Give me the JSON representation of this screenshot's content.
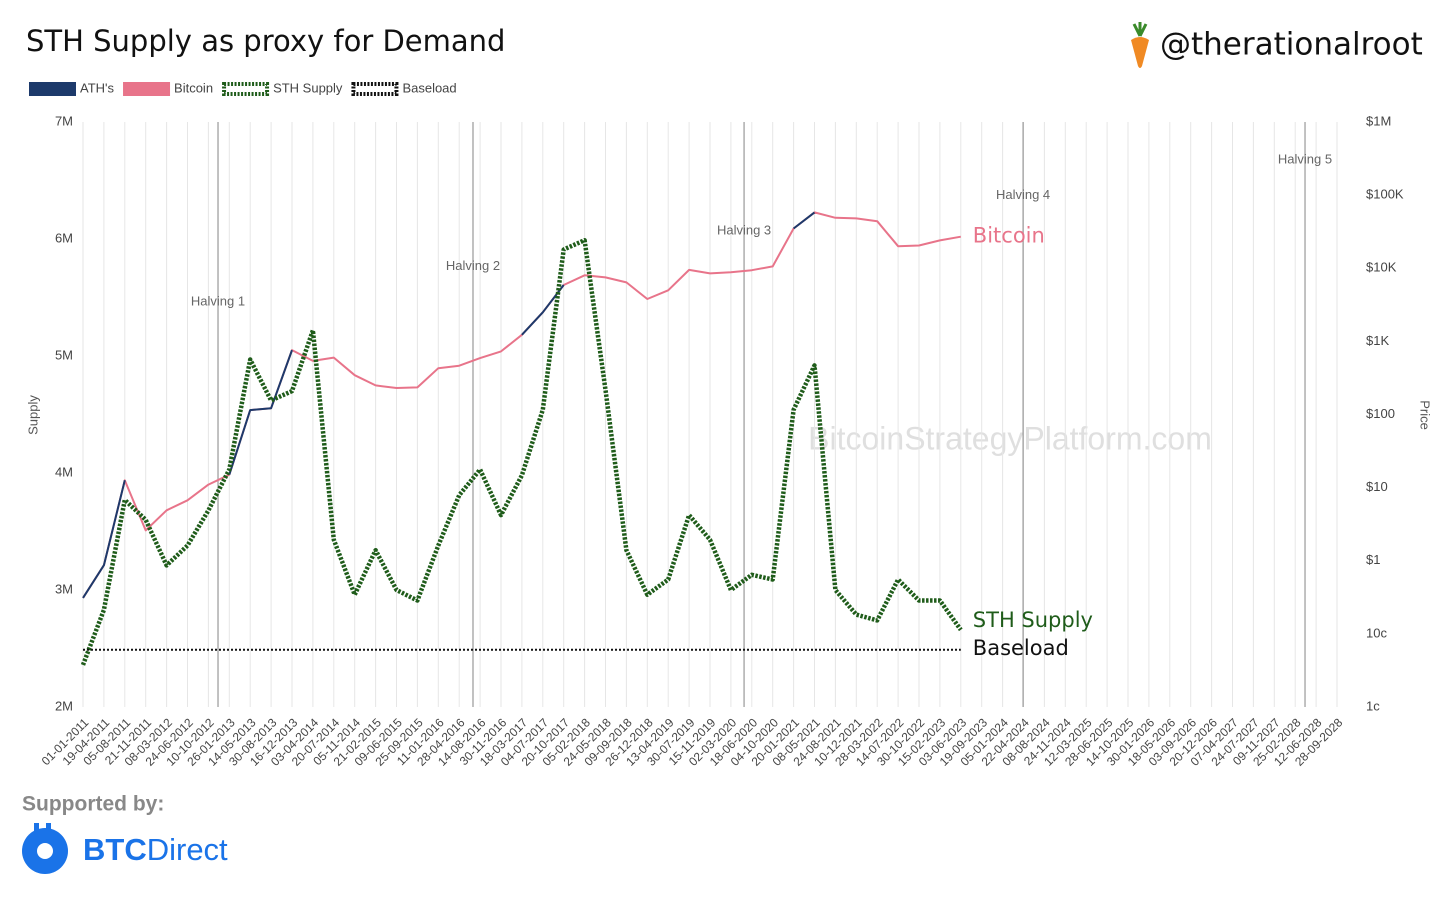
{
  "chart_data": {
    "type": "line",
    "title": "STH Supply as proxy for Demand",
    "handle": "@therationalroot",
    "sponsor_caption": "Supported by:",
    "sponsor_parts": [
      "BTC",
      "Direct"
    ],
    "watermark": "BitcoinStrategyPlatform.com",
    "ylabel": "Supply",
    "y2label": "Price",
    "grid": true,
    "y2log": true,
    "legend": "top-left",
    "categories": [
      "01-01-2011",
      "19-04-2011",
      "05-08-2011",
      "21-11-2011",
      "08-03-2012",
      "24-06-2012",
      "10-10-2012",
      "26-01-2013",
      "14-05-2013",
      "30-08-2013",
      "16-12-2013",
      "03-04-2014",
      "20-07-2014",
      "05-11-2014",
      "21-02-2015",
      "09-06-2015",
      "25-09-2015",
      "11-01-2016",
      "28-04-2016",
      "14-08-2016",
      "30-11-2016",
      "18-03-2017",
      "04-07-2017",
      "20-10-2017",
      "05-02-2018",
      "24-05-2018",
      "09-09-2018",
      "26-12-2018",
      "13-04-2019",
      "30-07-2019",
      "15-11-2019",
      "02-03-2020",
      "18-06-2020",
      "04-10-2020",
      "20-01-2021",
      "08-05-2021",
      "24-08-2021",
      "10-12-2021",
      "28-03-2022",
      "14-07-2022",
      "30-10-2022",
      "15-02-2023",
      "03-06-2023",
      "19-09-2023",
      "05-01-2024",
      "22-04-2024",
      "08-08-2024",
      "24-11-2024",
      "12-03-2025",
      "28-06-2025",
      "14-10-2025",
      "30-01-2026",
      "18-05-2026",
      "03-09-2026",
      "20-12-2026",
      "07-04-2027",
      "24-07-2027",
      "09-11-2027",
      "25-02-2028",
      "12-06-2028",
      "28-09-2028"
    ],
    "ylim": [
      2000000,
      7000000
    ],
    "yticks": [
      {
        "value": 2000000,
        "label": "2M"
      },
      {
        "value": 3000000,
        "label": "3M"
      },
      {
        "value": 4000000,
        "label": "4M"
      },
      {
        "value": 5000000,
        "label": "5M"
      },
      {
        "value": 6000000,
        "label": "6M"
      },
      {
        "value": 7000000,
        "label": "7M"
      }
    ],
    "y2lim": [
      0.01,
      1000000
    ],
    "y2ticks": [
      {
        "value": 0.01,
        "label": "1c"
      },
      {
        "value": 0.1,
        "label": "10c"
      },
      {
        "value": 1,
        "label": "$1"
      },
      {
        "value": 10,
        "label": "$10"
      },
      {
        "value": 100,
        "label": "$100"
      },
      {
        "value": 1000,
        "label": "$1K"
      },
      {
        "value": 10000,
        "label": "$10K"
      },
      {
        "value": 100000,
        "label": "$100K"
      },
      {
        "value": 1000000,
        "label": "$1M"
      }
    ],
    "halvings": [
      {
        "label": "Halving 1",
        "x": 6.46
      },
      {
        "label": "Halving 2",
        "x": 18.66
      },
      {
        "label": "Halving 3",
        "x": 31.63
      },
      {
        "label": "Halving 4",
        "x": 44.98
      },
      {
        "label": "Halving 5",
        "x": 58.47
      }
    ],
    "series": [
      {
        "name": "ATH's",
        "color": "#1d3a6b",
        "axis": "y2",
        "style": "solid",
        "values": [
          0.31,
          0.87,
          12.6,
          null,
          null,
          null,
          null,
          15,
          115,
          122,
          760,
          null,
          null,
          null,
          null,
          null,
          null,
          null,
          null,
          null,
          null,
          1230,
          2500,
          5900,
          null,
          null,
          null,
          null,
          null,
          null,
          null,
          null,
          null,
          null,
          35000,
          58000,
          null,
          null,
          null,
          null,
          null,
          null,
          null,
          null,
          null,
          null,
          null,
          null,
          null,
          null,
          null,
          null,
          null,
          null,
          null,
          null,
          null,
          null,
          null,
          null,
          null
        ]
      },
      {
        "name": "Bitcoin",
        "color": "#e8748a",
        "axis": "y2",
        "style": "solid",
        "end_label": "Bitcoin",
        "values": [
          0.31,
          0.87,
          12.6,
          2.6,
          4.9,
          6.7,
          11,
          15,
          115,
          122,
          760,
          540,
          600,
          345,
          250,
          230,
          235,
          430,
          465,
          590,
          730,
          1230,
          2500,
          5900,
          8000,
          7500,
          6400,
          3800,
          5000,
          9500,
          8500,
          8800,
          9400,
          10600,
          35000,
          58000,
          49000,
          48000,
          44000,
          20000,
          20500,
          24000,
          27000,
          null,
          null,
          null,
          null,
          null,
          null,
          null,
          null,
          null,
          null,
          null,
          null,
          null,
          null,
          null,
          null,
          null,
          null
        ]
      },
      {
        "name": "STH Supply",
        "color": "#1f5c1a",
        "axis": "y",
        "style": "dotted",
        "end_label": "STH Supply",
        "values": [
          2360000,
          2830000,
          3770000,
          3600000,
          3210000,
          3380000,
          3680000,
          4030000,
          4970000,
          4620000,
          4700000,
          5220000,
          3430000,
          2960000,
          3340000,
          3000000,
          2910000,
          3380000,
          3810000,
          4030000,
          3640000,
          3980000,
          4540000,
          5910000,
          5990000,
          4710000,
          3340000,
          2960000,
          3090000,
          3640000,
          3430000,
          3000000,
          3130000,
          3090000,
          4540000,
          4920000,
          3000000,
          2790000,
          2740000,
          3090000,
          2910000,
          2910000,
          2660000,
          null,
          null,
          null,
          null,
          null,
          null,
          null,
          null,
          null,
          null,
          null,
          null,
          null,
          null,
          null,
          null,
          null,
          null
        ]
      },
      {
        "name": "Baseload",
        "color": "#111111",
        "axis": "y",
        "style": "dotted-thin",
        "end_label": "Baseload",
        "values": [
          2490000,
          2490000,
          2490000,
          2490000,
          2490000,
          2490000,
          2490000,
          2490000,
          2490000,
          2490000,
          2490000,
          2490000,
          2490000,
          2490000,
          2490000,
          2490000,
          2490000,
          2490000,
          2490000,
          2490000,
          2490000,
          2490000,
          2490000,
          2490000,
          2490000,
          2490000,
          2490000,
          2490000,
          2490000,
          2490000,
          2490000,
          2490000,
          2490000,
          2490000,
          2490000,
          2490000,
          2490000,
          2490000,
          2490000,
          2490000,
          2490000,
          2490000,
          2490000,
          null,
          null,
          null,
          null,
          null,
          null,
          null,
          null,
          null,
          null,
          null,
          null,
          null,
          null,
          null,
          null,
          null,
          null
        ]
      }
    ]
  }
}
